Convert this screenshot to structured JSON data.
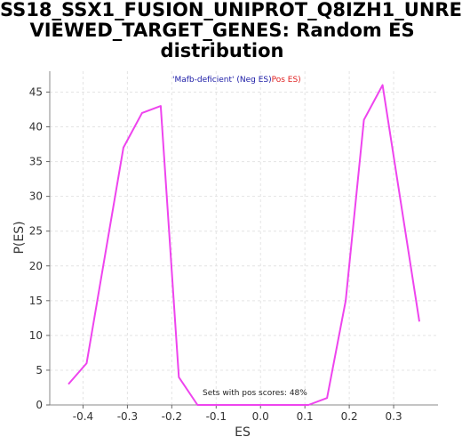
{
  "chart_data": {
    "type": "line",
    "title_lines": [
      "SS18_SSX1_FUSION_UNIPROT_Q8IZH1_UNRE",
      "VIEWED_TARGET_GENES: Random ES",
      "distribution"
    ],
    "xlabel": "ES",
    "ylabel": "P(ES)",
    "xlim": [
      -0.475,
      0.4
    ],
    "ylim": [
      0,
      48
    ],
    "xticks": [
      -0.4,
      -0.3,
      -0.2,
      -0.1,
      0.0,
      0.1,
      0.2,
      0.3
    ],
    "xtick_labels": [
      "-0.4",
      "-0.3",
      "-0.2",
      "-0.1",
      "0.0",
      "0.1",
      "0.2",
      "0.3"
    ],
    "yticks": [
      0,
      5,
      10,
      15,
      20,
      25,
      30,
      35,
      40,
      45
    ],
    "ytick_labels": [
      "0",
      "5",
      "10",
      "15",
      "20",
      "25",
      "30",
      "35",
      "40",
      "45"
    ],
    "grid": true,
    "legend": {
      "neg_text": "'Mafb-deficient' (Neg ES)",
      "pos_text": "Pos ES)",
      "neg_color": "#1a1aa6",
      "pos_color": "#e02020"
    },
    "annotation": "Sets with pos scores: 48%",
    "series": [
      {
        "color": "#ee44ee",
        "x": [
          -0.433,
          -0.392,
          -0.309,
          -0.267,
          -0.225,
          -0.184,
          -0.142,
          -0.1,
          0.108,
          0.15,
          0.192,
          0.233,
          0.275,
          0.358
        ],
        "y": [
          3,
          6,
          37,
          42,
          43,
          4,
          0,
          0,
          0,
          1,
          15,
          41,
          46,
          12
        ]
      }
    ]
  }
}
